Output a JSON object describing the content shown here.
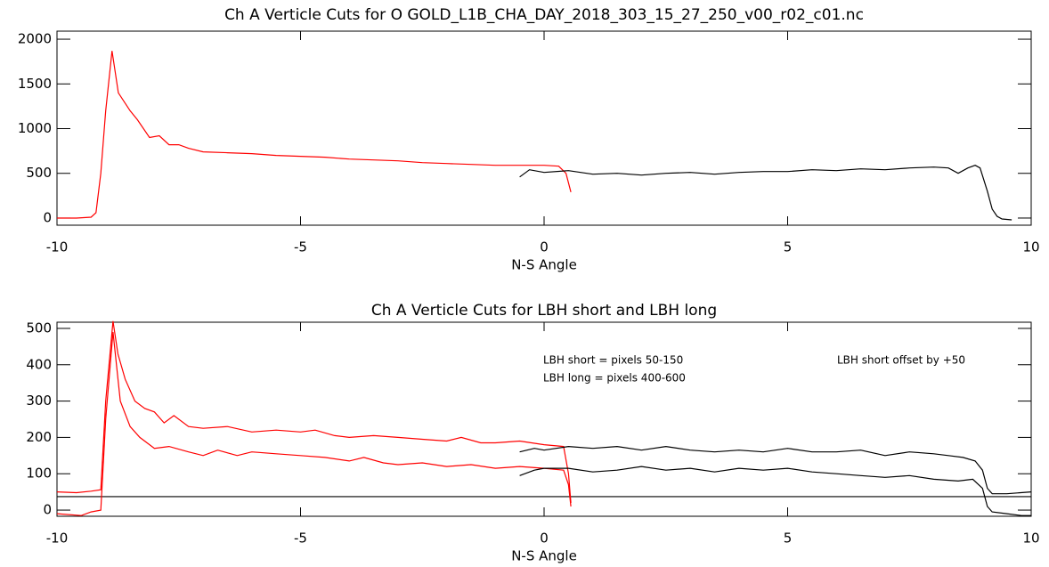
{
  "chart_data": [
    {
      "type": "line",
      "title": "Ch A Verticle Cuts for O GOLD_L1B_CHA_DAY_2018_303_15_27_250_v00_r02_c01.nc",
      "x_label": "N-S Angle",
      "xlim": [
        -10,
        10
      ],
      "xticks": [
        -10,
        -5,
        0,
        5,
        10
      ],
      "ylim": [
        -80,
        2090
      ],
      "yticks": [
        0,
        500,
        1000,
        1500,
        2000
      ],
      "series": [
        {
          "color": "#ff0000",
          "x": [
            -10,
            -9.6,
            -9.3,
            -9.2,
            -9.1,
            -9.0,
            -8.87,
            -8.74,
            -8.5,
            -8.35,
            -8.1,
            -7.9,
            -7.7,
            -7.5,
            -7.3,
            -7.0,
            -6.5,
            -6.0,
            -5.5,
            -5.0,
            -4.5,
            -4.0,
            -3.5,
            -3.0,
            -2.5,
            -2.0,
            -1.5,
            -1.0,
            -0.5,
            0,
            0.3,
            0.45,
            0.55
          ],
          "values": [
            0,
            0,
            10,
            60,
            500,
            1200,
            1869,
            1400,
            1200,
            1100,
            900,
            920,
            820,
            820,
            780,
            740,
            730,
            720,
            700,
            690,
            680,
            660,
            650,
            640,
            620,
            610,
            600,
            590,
            590,
            590,
            580,
            500,
            290
          ]
        },
        {
          "color": "#000000",
          "x": [
            -0.5,
            -0.3,
            0,
            0.5,
            1,
            1.5,
            2,
            2.5,
            3,
            3.5,
            4,
            4.5,
            5,
            5.5,
            6,
            6.5,
            7,
            7.5,
            8,
            8.3,
            8.5,
            8.7,
            8.85,
            8.95,
            9.1,
            9.2,
            9.3,
            9.4,
            9.6
          ],
          "values": [
            460,
            540,
            510,
            530,
            490,
            500,
            480,
            500,
            510,
            490,
            510,
            520,
            520,
            540,
            530,
            550,
            540,
            560,
            570,
            560,
            500,
            560,
            590,
            560,
            300,
            100,
            20,
            -10,
            -20
          ]
        }
      ]
    },
    {
      "type": "line",
      "title": "Ch A Verticle Cuts for LBH short and LBH long",
      "x_label": "N-S Angle",
      "annotations": [
        "LBH short = pixels 50-150",
        "LBH long = pixels 400-600",
        "LBH short offset by +50"
      ],
      "xlim": [
        -10,
        10
      ],
      "xticks": [
        -10,
        -5,
        0,
        5,
        10
      ],
      "ylim": [
        -17,
        517
      ],
      "yticks": [
        0,
        100,
        200,
        300,
        400,
        500
      ],
      "hlines": [
        37
      ],
      "series": [
        {
          "color": "#ff0000",
          "x": [
            -10,
            -9.6,
            -9.3,
            -9.1,
            -9.0,
            -8.85,
            -8.75,
            -8.6,
            -8.4,
            -8.2,
            -8.0,
            -7.8,
            -7.6,
            -7.3,
            -7.0,
            -6.5,
            -6.0,
            -5.5,
            -5.0,
            -4.7,
            -4.3,
            -4.0,
            -3.5,
            -3.0,
            -2.5,
            -2.0,
            -1.7,
            -1.3,
            -1.0,
            -0.5,
            0,
            0.4,
            0.5,
            0.55
          ],
          "values": [
            50,
            48,
            52,
            56,
            300,
            520,
            430,
            360,
            300,
            280,
            270,
            240,
            260,
            230,
            225,
            230,
            215,
            220,
            215,
            220,
            205,
            200,
            205,
            200,
            195,
            190,
            200,
            185,
            185,
            190,
            180,
            175,
            100,
            20
          ]
        },
        {
          "color": "#ff0000",
          "x": [
            -10,
            -9.5,
            -9.3,
            -9.1,
            -9.0,
            -8.85,
            -8.7,
            -8.5,
            -8.3,
            -8.0,
            -7.7,
            -7.3,
            -7.0,
            -6.7,
            -6.3,
            -6.0,
            -5.5,
            -5.0,
            -4.5,
            -4.0,
            -3.7,
            -3.3,
            -3.0,
            -2.5,
            -2.0,
            -1.5,
            -1.0,
            -0.5,
            0,
            0.4,
            0.5,
            0.55
          ],
          "values": [
            -10,
            -15,
            -5,
            0,
            250,
            490,
            300,
            230,
            200,
            170,
            175,
            160,
            150,
            165,
            150,
            160,
            155,
            150,
            145,
            135,
            145,
            130,
            125,
            130,
            120,
            125,
            115,
            120,
            115,
            110,
            70,
            10
          ]
        },
        {
          "color": "#000000",
          "x": [
            -0.5,
            -0.2,
            0,
            0.5,
            1,
            1.5,
            2,
            2.5,
            3,
            3.5,
            4,
            4.5,
            5,
            5.5,
            6,
            6.5,
            7,
            7.5,
            8,
            8.3,
            8.6,
            8.85,
            9.0,
            9.1,
            9.2,
            9.5,
            10
          ],
          "values": [
            160,
            170,
            165,
            175,
            170,
            175,
            165,
            175,
            165,
            160,
            165,
            160,
            170,
            160,
            160,
            165,
            150,
            160,
            155,
            150,
            145,
            135,
            110,
            60,
            45,
            45,
            50
          ]
        },
        {
          "color": "#000000",
          "x": [
            -0.5,
            -0.2,
            0,
            0.5,
            1,
            1.5,
            2,
            2.5,
            3,
            3.5,
            4,
            4.5,
            5,
            5.5,
            6,
            6.5,
            7,
            7.5,
            8,
            8.5,
            8.8,
            9.0,
            9.1,
            9.2,
            9.5,
            9.8,
            10
          ],
          "values": [
            95,
            110,
            115,
            115,
            105,
            110,
            120,
            110,
            115,
            105,
            115,
            110,
            115,
            105,
            100,
            95,
            90,
            95,
            85,
            80,
            85,
            60,
            10,
            -5,
            -10,
            -15,
            -15
          ]
        }
      ]
    }
  ]
}
